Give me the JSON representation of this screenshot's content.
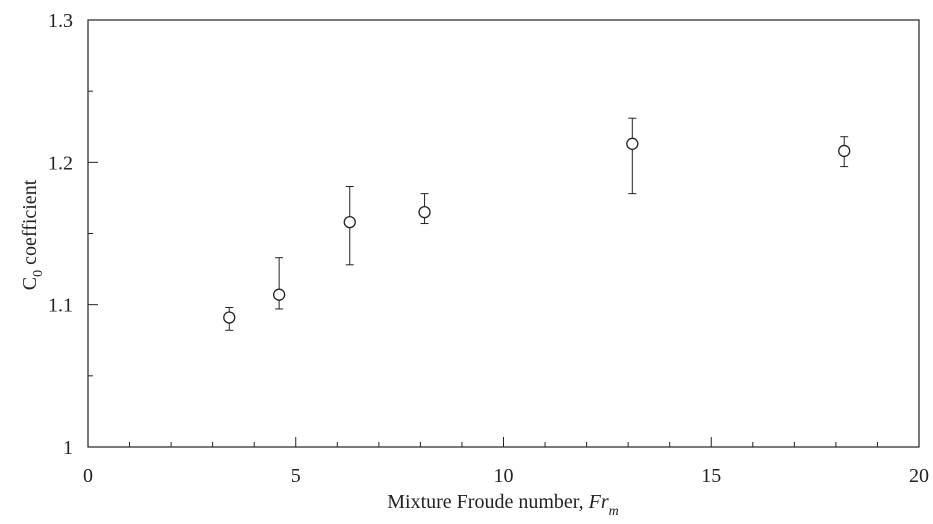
{
  "chart_data": {
    "type": "scatter",
    "title": "",
    "xlabel": "Mixture Froude number, ",
    "xlabel_symbol": "Fr",
    "xlabel_subscript": "m",
    "ylabel_symbol": "C",
    "ylabel_subscript": "0",
    "ylabel_rest": " coefficient",
    "xlim": [
      0,
      20
    ],
    "ylim": [
      1.0,
      1.3
    ],
    "x_ticks": [
      0,
      5,
      10,
      15,
      20
    ],
    "x_tick_labels": [
      "0",
      "5",
      "10",
      "15",
      "20"
    ],
    "y_ticks": [
      1.0,
      1.1,
      1.2,
      1.3
    ],
    "y_tick_labels": [
      "1",
      "1.1",
      "1.2",
      "1.3"
    ],
    "grid": false,
    "series": [
      {
        "marker": "open-circle",
        "points": [
          {
            "x": 3.4,
            "y": 1.091,
            "err_low": 1.082,
            "err_high": 1.098
          },
          {
            "x": 4.6,
            "y": 1.107,
            "err_low": 1.097,
            "err_high": 1.133
          },
          {
            "x": 6.3,
            "y": 1.158,
            "err_low": 1.128,
            "err_high": 1.183
          },
          {
            "x": 8.1,
            "y": 1.165,
            "err_low": 1.157,
            "err_high": 1.178
          },
          {
            "x": 13.1,
            "y": 1.213,
            "err_low": 1.178,
            "err_high": 1.231
          },
          {
            "x": 18.2,
            "y": 1.208,
            "err_low": 1.197,
            "err_high": 1.218
          }
        ]
      }
    ],
    "colors": {
      "axis": "#222222",
      "marker": "#222222",
      "background": "#ffffff"
    }
  }
}
